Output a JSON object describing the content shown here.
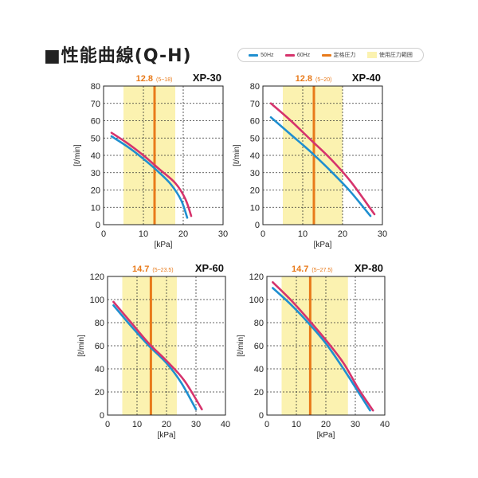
{
  "heading": "■性能曲線(Q-H)",
  "legend": [
    {
      "label": "50Hz",
      "color": "#1f8fd0",
      "kind": "line"
    },
    {
      "label": "60Hz",
      "color": "#d6336c",
      "kind": "line"
    },
    {
      "label": "定格圧力",
      "color": "#e87a1a",
      "kind": "line"
    },
    {
      "label": "使用圧力範囲",
      "color": "#fbf2b0",
      "kind": "box"
    }
  ],
  "colors": {
    "hz50": "#1f8fd0",
    "hz60": "#d6336c",
    "rated": "#e87a1a",
    "band": "#fbf2b0"
  },
  "chart_data": [
    {
      "type": "line",
      "model": "XP-30",
      "rated_label": "12.8",
      "range_label": "(5~18)",
      "rated_value": 12.8,
      "range": [
        5,
        18
      ],
      "xlabel": "[kPa]",
      "ylabel": "[ℓ/min]",
      "xlim": [
        0,
        30
      ],
      "ylim": [
        0,
        80
      ],
      "xticks": [
        0,
        10,
        20,
        30
      ],
      "yticks": [
        0,
        10,
        20,
        30,
        40,
        50,
        60,
        70,
        80
      ],
      "grid": true,
      "series": [
        {
          "name": "50Hz",
          "points": [
            [
              2,
              51
            ],
            [
              6,
              45
            ],
            [
              10,
              38
            ],
            [
              14,
              30
            ],
            [
              17,
              23
            ],
            [
              19.5,
              14
            ],
            [
              21,
              4
            ]
          ]
        },
        {
          "name": "60Hz",
          "points": [
            [
              2,
              53
            ],
            [
              6,
              47
            ],
            [
              10,
              40
            ],
            [
              14,
              32
            ],
            [
              18,
              24
            ],
            [
              20.5,
              15
            ],
            [
              22,
              5
            ]
          ]
        }
      ]
    },
    {
      "type": "line",
      "model": "XP-40",
      "rated_label": "12.8",
      "range_label": "(5~20)",
      "rated_value": 12.8,
      "range": [
        5,
        20
      ],
      "xlabel": "[kPa]",
      "ylabel": "[ℓ/min]",
      "xlim": [
        0,
        30
      ],
      "ylim": [
        0,
        80
      ],
      "xticks": [
        0,
        10,
        20,
        30
      ],
      "yticks": [
        0,
        10,
        20,
        30,
        40,
        50,
        60,
        70,
        80
      ],
      "grid": true,
      "series": [
        {
          "name": "50Hz",
          "points": [
            [
              2,
              62
            ],
            [
              7,
              52
            ],
            [
              12,
              42
            ],
            [
              17,
              31
            ],
            [
              22,
              19
            ],
            [
              27,
              5
            ]
          ]
        },
        {
          "name": "60Hz",
          "points": [
            [
              2,
              70
            ],
            [
              7,
              60
            ],
            [
              12,
              49
            ],
            [
              17,
              38
            ],
            [
              22,
              25
            ],
            [
              28,
              6
            ]
          ]
        }
      ]
    },
    {
      "type": "line",
      "model": "XP-60",
      "rated_label": "14.7",
      "range_label": "(5~23.5)",
      "rated_value": 14.7,
      "range": [
        5,
        23.5
      ],
      "xlabel": "[kPa]",
      "ylabel": "[ℓ/min]",
      "xlim": [
        0,
        40
      ],
      "ylim": [
        0,
        120
      ],
      "xticks": [
        0,
        10,
        20,
        30,
        40
      ],
      "yticks": [
        0,
        20,
        40,
        60,
        80,
        100,
        120
      ],
      "grid": true,
      "series": [
        {
          "name": "50Hz",
          "points": [
            [
              2,
              95
            ],
            [
              8,
              77
            ],
            [
              14,
              60
            ],
            [
              20,
              45
            ],
            [
              25,
              28
            ],
            [
              30,
              5
            ]
          ]
        },
        {
          "name": "60Hz",
          "points": [
            [
              2,
              98
            ],
            [
              8,
              80
            ],
            [
              14,
              62
            ],
            [
              20,
              47
            ],
            [
              26,
              30
            ],
            [
              32,
              5
            ]
          ]
        }
      ]
    },
    {
      "type": "line",
      "model": "XP-80",
      "rated_label": "14.7",
      "range_label": "(5~27.5)",
      "rated_value": 14.7,
      "range": [
        5,
        27.5
      ],
      "xlabel": "[kPa]",
      "ylabel": "[ℓ/min]",
      "xlim": [
        0,
        40
      ],
      "ylim": [
        0,
        120
      ],
      "xticks": [
        0,
        10,
        20,
        30,
        40
      ],
      "yticks": [
        0,
        20,
        40,
        60,
        80,
        100,
        120
      ],
      "grid": true,
      "series": [
        {
          "name": "50Hz",
          "points": [
            [
              2,
              110
            ],
            [
              8,
              96
            ],
            [
              14,
              80
            ],
            [
              20,
              62
            ],
            [
              26,
              40
            ],
            [
              31,
              20
            ],
            [
              35,
              4
            ]
          ]
        },
        {
          "name": "60Hz",
          "points": [
            [
              2,
              115
            ],
            [
              8,
              100
            ],
            [
              14,
              83
            ],
            [
              20,
              65
            ],
            [
              26,
              45
            ],
            [
              31,
              23
            ],
            [
              36,
              4
            ]
          ]
        }
      ]
    }
  ]
}
